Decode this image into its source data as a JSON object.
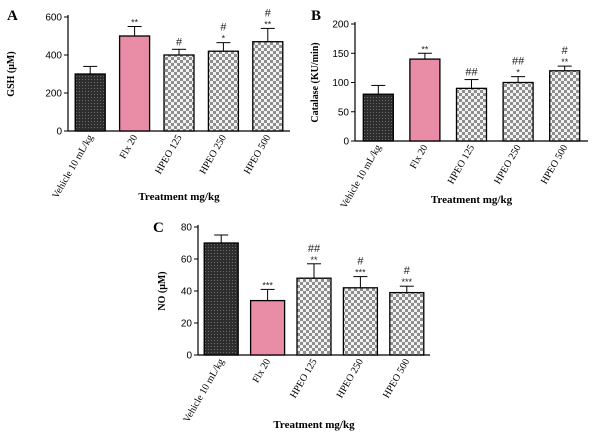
{
  "colors": {
    "vehicle": "#3a3a3a",
    "flx": "#e98ca6",
    "hpeo_light": "#eeeeee",
    "hpeo_dark": "#8a8a8a",
    "axis": "#000000"
  },
  "chart_data": [
    {
      "panel": "A",
      "type": "bar",
      "categories": [
        "Vehicle 10 mL/kg",
        "Flx 20",
        "HPEO 125",
        "HPEO 250",
        "HPEO 500"
      ],
      "values": [
        300,
        500,
        400,
        420,
        470
      ],
      "errors": [
        40,
        50,
        30,
        45,
        70
      ],
      "stars": [
        "",
        "**",
        "",
        "*",
        "**"
      ],
      "hashes": [
        "",
        "",
        "#",
        "#",
        "#"
      ],
      "ylabel": "GSH (μM)",
      "xlabel": "Treatment mg/kg",
      "ylim": [
        0,
        600
      ],
      "yticks": [
        "0",
        "200",
        "400",
        "600"
      ]
    },
    {
      "panel": "B",
      "type": "bar",
      "categories": [
        "Vehicle 10 mL/kg",
        "Flx 20",
        "HPEO 125",
        "HPEO 250",
        "HPEO 500"
      ],
      "values": [
        80,
        140,
        90,
        100,
        120
      ],
      "errors": [
        15,
        10,
        15,
        10,
        8
      ],
      "stars": [
        "",
        "**",
        "",
        "*",
        "**"
      ],
      "hashes": [
        "",
        "",
        "##",
        "##",
        "#"
      ],
      "ylabel": "Catalase (KU/min)",
      "xlabel": "Treatment mg/kg",
      "ylim": [
        0,
        200
      ],
      "yticks": [
        "0",
        "50",
        "100",
        "150",
        "200"
      ]
    },
    {
      "panel": "C",
      "type": "bar",
      "categories": [
        "Vehicle 10 mL/kg",
        "Flx 20",
        "HPEO 125",
        "HPEO 250",
        "HPEO 500"
      ],
      "values": [
        70,
        34,
        48,
        42,
        39
      ],
      "errors": [
        5,
        7,
        9,
        7,
        4
      ],
      "stars": [
        "",
        "***",
        "**",
        "***",
        "***"
      ],
      "hashes": [
        "",
        "",
        "##",
        "#",
        "#"
      ],
      "ylabel": "NO (μM)",
      "xlabel": "Treatment mg/kg",
      "ylim": [
        0,
        80
      ],
      "yticks": [
        "0",
        "20",
        "40",
        "60",
        "80"
      ]
    }
  ]
}
